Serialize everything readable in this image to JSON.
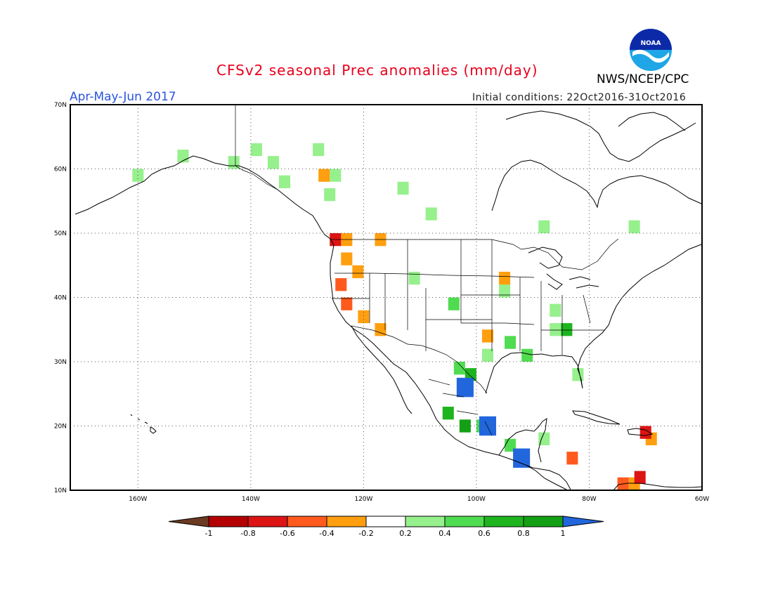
{
  "header": {
    "title": "CFSv2 seasonal Prec anomalies (mm/day)",
    "period": "Apr-May-Jun 2017",
    "initial_conditions": "Initial conditions: 22Oct2016-31Oct2016",
    "agency": "NWS/NCEP/CPC",
    "logo_text": "NOAA"
  },
  "map": {
    "projection": "lat-lon",
    "lon_range": [
      -172,
      -60
    ],
    "lat_range": [
      10,
      70
    ],
    "grid": true,
    "lat_ticks": [
      {
        "value": 70,
        "label": "70N"
      },
      {
        "value": 60,
        "label": "60N"
      },
      {
        "value": 50,
        "label": "50N"
      },
      {
        "value": 40,
        "label": "40N"
      },
      {
        "value": 30,
        "label": "30N"
      },
      {
        "value": 20,
        "label": "20N"
      },
      {
        "value": 10,
        "label": "10N"
      }
    ],
    "lon_ticks": [
      {
        "value": -160,
        "label": "160W"
      },
      {
        "value": -140,
        "label": "140W"
      },
      {
        "value": -120,
        "label": "120W"
      },
      {
        "value": -100,
        "label": "100W"
      },
      {
        "value": -80,
        "label": "80W"
      },
      {
        "value": -60,
        "label": "60W"
      }
    ]
  },
  "colorbar": {
    "labels": [
      "-1",
      "-0.8",
      "-0.6",
      "-0.4",
      "-0.2",
      "0.2",
      "0.4",
      "0.6",
      "0.8",
      "1"
    ],
    "colors": {
      "lt_m1": "#6b3a22",
      "m1_m08": "#b40000",
      "m08_m06": "#dc1414",
      "m06_m04": "#ff5a1e",
      "m04_m02": "#ff9f0f",
      "m02_p02": "#ffffff",
      "p02_p04": "#96f08c",
      "p04_p06": "#50dc50",
      "p06_p08": "#1eb41e",
      "p08_p1": "#14a014",
      "gt_p1": "#2266dd"
    }
  },
  "chart_data": {
    "type": "heatmap",
    "title": "CFSv2 seasonal Prec anomalies (mm/day)",
    "cells": [
      {
        "lat": 59,
        "lon": -160,
        "cls": "p02_p04"
      },
      {
        "lat": 62,
        "lon": -152,
        "cls": "p02_p04"
      },
      {
        "lat": 61,
        "lon": -143,
        "cls": "p02_p04"
      },
      {
        "lat": 61,
        "lon": -136,
        "cls": "p02_p04"
      },
      {
        "lat": 63,
        "lon": -139,
        "cls": "p02_p04"
      },
      {
        "lat": 63,
        "lon": -128,
        "cls": "p02_p04"
      },
      {
        "lat": 58,
        "lon": -134,
        "cls": "p02_p04"
      },
      {
        "lat": 59,
        "lon": -125,
        "cls": "p02_p04"
      },
      {
        "lat": 56,
        "lon": -126,
        "cls": "p02_p04"
      },
      {
        "lat": 57,
        "lon": -113,
        "cls": "p02_p04"
      },
      {
        "lat": 53,
        "lon": -108,
        "cls": "p02_p04"
      },
      {
        "lat": 51,
        "lon": -88,
        "cls": "p02_p04"
      },
      {
        "lat": 51,
        "lon": -72,
        "cls": "p02_p04"
      },
      {
        "lat": 41,
        "lon": -95,
        "cls": "p02_p04"
      },
      {
        "lat": 43,
        "lon": -111,
        "cls": "p02_p04"
      },
      {
        "lat": 38,
        "lon": -86,
        "cls": "p02_p04"
      },
      {
        "lat": 35,
        "lon": -86,
        "cls": "p02_p04"
      },
      {
        "lat": 31,
        "lon": -98,
        "cls": "p02_p04"
      },
      {
        "lat": 28,
        "lon": -82,
        "cls": "p02_p04"
      },
      {
        "lat": 18,
        "lon": -88,
        "cls": "p02_p04"
      },
      {
        "lat": 39,
        "lon": -104,
        "cls": "p04_p06"
      },
      {
        "lat": 33,
        "lon": -94,
        "cls": "p04_p06"
      },
      {
        "lat": 31,
        "lon": -91,
        "cls": "p04_p06"
      },
      {
        "lat": 29,
        "lon": -103,
        "cls": "p04_p06"
      },
      {
        "lat": 20,
        "lon": -99,
        "cls": "p04_p06"
      },
      {
        "lat": 17,
        "lon": -94,
        "cls": "p04_p06"
      },
      {
        "lat": 35,
        "lon": -84,
        "cls": "p06_p08"
      },
      {
        "lat": 28,
        "lon": -101,
        "cls": "p06_p08"
      },
      {
        "lat": 22,
        "lon": -105,
        "cls": "p06_p08"
      },
      {
        "lat": 20,
        "lon": -102,
        "cls": "p08_p1"
      },
      {
        "lat": 26,
        "lon": -102,
        "cls": "gt_p1"
      },
      {
        "lat": 20,
        "lon": -98,
        "cls": "gt_p1"
      },
      {
        "lat": 15,
        "lon": -92,
        "cls": "gt_p1"
      },
      {
        "lat": 49,
        "lon": -123,
        "cls": "m02_m04"
      },
      {
        "lat": 46,
        "lon": -123,
        "cls": "m04_m02"
      },
      {
        "lat": 44,
        "lon": -121,
        "cls": "m04_m02"
      },
      {
        "lat": 37,
        "lon": -120,
        "cls": "m04_m02"
      },
      {
        "lat": 35,
        "lon": -117,
        "cls": "m04_m02"
      },
      {
        "lat": 49,
        "lon": -117,
        "cls": "m04_m02"
      },
      {
        "lat": 43,
        "lon": -95,
        "cls": "m04_m02"
      },
      {
        "lat": 34,
        "lon": -98,
        "cls": "m04_m02"
      },
      {
        "lat": 59,
        "lon": -127,
        "cls": "m04_m02"
      },
      {
        "lat": 11,
        "lon": -72,
        "cls": "m04_m02"
      },
      {
        "lat": 18,
        "lon": -69,
        "cls": "m04_m02"
      },
      {
        "lat": 42,
        "lon": -124,
        "cls": "m06_m04"
      },
      {
        "lat": 39,
        "lon": -123,
        "cls": "m06_m04"
      },
      {
        "lat": 15,
        "lon": -83,
        "cls": "m06_m04"
      },
      {
        "lat": 11,
        "lon": -74,
        "cls": "m06_m04"
      },
      {
        "lat": 49,
        "lon": -125,
        "cls": "m08_m06"
      },
      {
        "lat": 19,
        "lon": -70,
        "cls": "m08_m06"
      },
      {
        "lat": 12,
        "lon": -71,
        "cls": "m08_m06"
      }
    ]
  }
}
